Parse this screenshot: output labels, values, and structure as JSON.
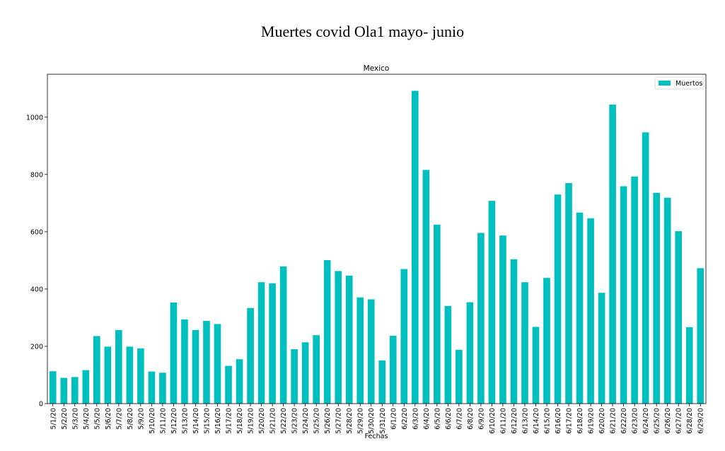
{
  "figure_title": "Muertes covid Ola1 mayo- junio",
  "chart_data": {
    "type": "bar",
    "title": "Mexico",
    "xlabel": "Fechas",
    "ylabel": "",
    "ylim": [
      0,
      1150
    ],
    "yticks": [
      0,
      200,
      400,
      600,
      800,
      1000
    ],
    "grid": false,
    "legend_position": "top-right",
    "color": "#00bfbf",
    "categories": [
      "5/1/20",
      "5/2/20",
      "5/3/20",
      "5/4/20",
      "5/5/20",
      "5/6/20",
      "5/7/20",
      "5/8/20",
      "5/9/20",
      "5/10/20",
      "5/11/20",
      "5/12/20",
      "5/13/20",
      "5/14/20",
      "5/15/20",
      "5/16/20",
      "5/17/20",
      "5/18/20",
      "5/19/20",
      "5/20/20",
      "5/21/20",
      "5/22/20",
      "5/23/20",
      "5/24/20",
      "5/25/20",
      "5/26/20",
      "5/27/20",
      "5/28/20",
      "5/29/20",
      "5/30/20",
      "5/31/20",
      "6/1/20",
      "6/2/20",
      "6/3/20",
      "6/4/20",
      "6/5/20",
      "6/6/20",
      "6/7/20",
      "6/8/20",
      "6/9/20",
      "6/10/20",
      "6/11/20",
      "6/12/20",
      "6/13/20",
      "6/14/20",
      "6/15/20",
      "6/16/20",
      "6/17/20",
      "6/18/20",
      "6/19/20",
      "6/20/20",
      "6/21/20",
      "6/22/20",
      "6/23/20",
      "6/24/20",
      "6/25/20",
      "6/26/20",
      "6/27/20",
      "6/28/20",
      "6/29/20"
    ],
    "series": [
      {
        "name": "Muertos",
        "values": [
          113,
          90,
          93,
          117,
          236,
          199,
          257,
          199,
          193,
          112,
          108,
          353,
          294,
          257,
          289,
          278,
          132,
          155,
          334,
          424,
          420,
          479,
          190,
          214,
          239,
          501,
          463,
          447,
          371,
          364,
          151,
          237,
          470,
          1092,
          816,
          625,
          341,
          188,
          354,
          596,
          708,
          587,
          504,
          424,
          268,
          439,
          730,
          770,
          667,
          647,
          387,
          1044,
          759,
          793,
          947,
          736,
          719,
          602,
          267,
          473
        ]
      }
    ]
  }
}
